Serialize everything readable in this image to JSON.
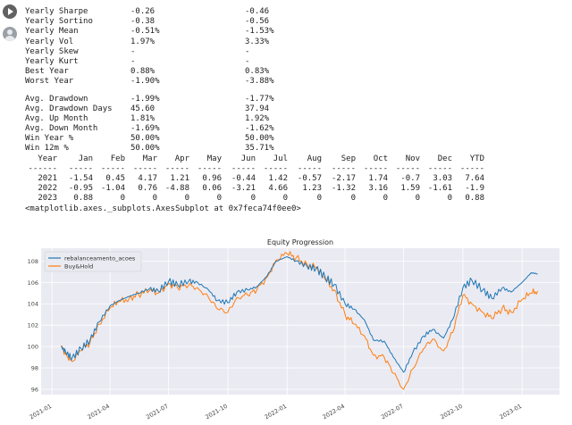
{
  "stats": [
    {
      "label": "Yearly Sharpe",
      "a": "-0.26",
      "b": "-0.46"
    },
    {
      "label": "Yearly Sortino",
      "a": "-0.38",
      "b": "-0.56"
    },
    {
      "label": "Yearly Mean",
      "a": "-0.51%",
      "b": "-1.53%"
    },
    {
      "label": "Yearly Vol",
      "a": "1.97%",
      "b": "3.33%"
    },
    {
      "label": "Yearly Skew",
      "a": "-",
      "b": "-"
    },
    {
      "label": "Yearly Kurt",
      "a": "-",
      "b": "-"
    },
    {
      "label": "Best Year",
      "a": "0.88%",
      "b": "0.83%"
    },
    {
      "label": "Worst Year",
      "a": "-1.90%",
      "b": "-3.88%"
    }
  ],
  "stats2": [
    {
      "label": "Avg. Drawdown",
      "a": "-1.99%",
      "b": "-1.77%"
    },
    {
      "label": "Avg. Drawdown Days",
      "a": "45.60",
      "b": "37.94"
    },
    {
      "label": "Avg. Up Month",
      "a": "1.81%",
      "b": "1.92%"
    },
    {
      "label": "Avg. Down Month",
      "a": "-1.69%",
      "b": "-1.62%"
    },
    {
      "label": "Win Year %",
      "a": "50.00%",
      "b": "50.00%"
    },
    {
      "label": "Win 12m %",
      "a": "50.00%",
      "b": "35.71%"
    }
  ],
  "monthly": {
    "header": [
      "Year",
      "Jan",
      "Feb",
      "Mar",
      "Apr",
      "May",
      "Jun",
      "Jul",
      "Aug",
      "Sep",
      "Oct",
      "Nov",
      "Dec",
      "YTD"
    ],
    "separator": [
      "------",
      "-----",
      "-----",
      "-----",
      "-----",
      "-----",
      "-----",
      "-----",
      "-----",
      "-----",
      "-----",
      "-----",
      "-----",
      "-----"
    ],
    "rows": [
      [
        "2021",
        "-1.54",
        "0.45",
        "4.17",
        "1.21",
        "0.96",
        "-0.44",
        "1.42",
        "-0.57",
        "-2.17",
        "1.74",
        "-0.7",
        "3.03",
        "7.64"
      ],
      [
        "2022",
        "-0.95",
        "-1.04",
        "0.76",
        "-4.88",
        "0.06",
        "-3.21",
        "4.66",
        "1.23",
        "-1.32",
        "3.16",
        "1.59",
        "-1.61",
        "-1.9"
      ],
      [
        "2023",
        "0.88",
        "0",
        "0",
        "0",
        "0",
        "0",
        "0",
        "0",
        "0",
        "0",
        "0",
        "0",
        "0.88"
      ]
    ]
  },
  "repr": "<matplotlib.axes._subplots.AxesSubplot at 0x7feca74f0ee0>",
  "chart_data": {
    "type": "line",
    "title": "Equity Progression",
    "x_ticks": [
      "2021-01",
      "2021-04",
      "2021-07",
      "2021-10",
      "2022-01",
      "2022-04",
      "2022-07",
      "2022-10",
      "2023-01"
    ],
    "y_ticks": [
      "96",
      "98",
      "100",
      "102",
      "104",
      "106",
      "108"
    ],
    "ylim": [
      95.5,
      109.2
    ],
    "legend": "top-left",
    "grid": true,
    "colors": {
      "rebal": "#1f77b4",
      "hold": "#ff7f0e",
      "bg": "#eaeaf2"
    },
    "series": [
      {
        "name": "rebalanceamento_acoes",
        "color": "#1f77b4",
        "points": [
          [
            "2021-01-15",
            100
          ],
          [
            "2021-01-22",
            99.5
          ],
          [
            "2021-02-01",
            98.9
          ],
          [
            "2021-02-15",
            99.8
          ],
          [
            "2021-03-01",
            100.6
          ],
          [
            "2021-03-15",
            102.3
          ],
          [
            "2021-04-01",
            103.8
          ],
          [
            "2021-04-15",
            104.3
          ],
          [
            "2021-05-01",
            104.7
          ],
          [
            "2021-05-15",
            105.0
          ],
          [
            "2021-06-01",
            105.4
          ],
          [
            "2021-06-15",
            105.2
          ],
          [
            "2021-07-01",
            106.1
          ],
          [
            "2021-07-15",
            105.8
          ],
          [
            "2021-08-01",
            106.1
          ],
          [
            "2021-08-15",
            106.0
          ],
          [
            "2021-09-01",
            105.3
          ],
          [
            "2021-09-15",
            104.3
          ],
          [
            "2021-10-01",
            104.1
          ],
          [
            "2021-10-15",
            105.1
          ],
          [
            "2021-11-01",
            105.3
          ],
          [
            "2021-11-15",
            105.6
          ],
          [
            "2021-12-01",
            106.6
          ],
          [
            "2021-12-15",
            108.0
          ],
          [
            "2022-01-01",
            108.4
          ],
          [
            "2022-01-15",
            108.0
          ],
          [
            "2022-02-01",
            107.5
          ],
          [
            "2022-02-15",
            107.3
          ],
          [
            "2022-03-01",
            106.5
          ],
          [
            "2022-03-15",
            105.8
          ],
          [
            "2022-04-01",
            104.0
          ],
          [
            "2022-04-15",
            103.5
          ],
          [
            "2022-05-01",
            102.5
          ],
          [
            "2022-05-15",
            100.6
          ],
          [
            "2022-06-01",
            100.5
          ],
          [
            "2022-06-15",
            99.0
          ],
          [
            "2022-07-01",
            97.6
          ],
          [
            "2022-07-15",
            99.4
          ],
          [
            "2022-08-01",
            101.0
          ],
          [
            "2022-08-15",
            101.6
          ],
          [
            "2022-09-01",
            100.8
          ],
          [
            "2022-09-15",
            102.5
          ],
          [
            "2022-10-01",
            105.5
          ],
          [
            "2022-10-15",
            106.2
          ],
          [
            "2022-11-01",
            105.3
          ],
          [
            "2022-11-15",
            104.5
          ],
          [
            "2022-12-01",
            105.5
          ],
          [
            "2022-12-15",
            105.1
          ],
          [
            "2023-01-01",
            106.0
          ],
          [
            "2023-01-15",
            106.9
          ],
          [
            "2023-01-25",
            106.8
          ]
        ]
      },
      {
        "name": "Buy&Hold",
        "color": "#ff7f0e",
        "points": [
          [
            "2021-01-15",
            100
          ],
          [
            "2021-01-22",
            99.3
          ],
          [
            "2021-02-01",
            98.6
          ],
          [
            "2021-02-15",
            99.6
          ],
          [
            "2021-03-01",
            100.4
          ],
          [
            "2021-03-15",
            102.1
          ],
          [
            "2021-04-01",
            103.6
          ],
          [
            "2021-04-15",
            104.2
          ],
          [
            "2021-05-01",
            104.5
          ],
          [
            "2021-05-15",
            104.9
          ],
          [
            "2021-06-01",
            105.2
          ],
          [
            "2021-06-15",
            105.0
          ],
          [
            "2021-07-01",
            105.9
          ],
          [
            "2021-07-15",
            105.5
          ],
          [
            "2021-08-01",
            105.7
          ],
          [
            "2021-08-15",
            105.5
          ],
          [
            "2021-09-01",
            104.6
          ],
          [
            "2021-09-15",
            103.5
          ],
          [
            "2021-10-01",
            103.2
          ],
          [
            "2021-10-15",
            104.6
          ],
          [
            "2021-11-01",
            104.8
          ],
          [
            "2021-11-15",
            105.3
          ],
          [
            "2021-12-01",
            106.5
          ],
          [
            "2021-12-15",
            108.1
          ],
          [
            "2022-01-01",
            108.7
          ],
          [
            "2022-01-15",
            108.3
          ],
          [
            "2022-02-01",
            107.7
          ],
          [
            "2022-02-15",
            107.4
          ],
          [
            "2022-03-01",
            106.3
          ],
          [
            "2022-03-15",
            105.3
          ],
          [
            "2022-04-01",
            103.0
          ],
          [
            "2022-04-15",
            102.1
          ],
          [
            "2022-05-01",
            101.0
          ],
          [
            "2022-05-15",
            99.2
          ],
          [
            "2022-06-01",
            99.0
          ],
          [
            "2022-06-15",
            97.5
          ],
          [
            "2022-07-01",
            96.0
          ],
          [
            "2022-07-15",
            97.9
          ],
          [
            "2022-08-01",
            99.8
          ],
          [
            "2022-08-15",
            100.7
          ],
          [
            "2022-09-01",
            99.6
          ],
          [
            "2022-09-15",
            101.3
          ],
          [
            "2022-10-01",
            104.8
          ],
          [
            "2022-10-15",
            104.0
          ],
          [
            "2022-11-01",
            103.2
          ],
          [
            "2022-11-15",
            102.6
          ],
          [
            "2022-12-01",
            103.6
          ],
          [
            "2022-12-15",
            103.2
          ],
          [
            "2023-01-01",
            104.4
          ],
          [
            "2023-01-15",
            105.0
          ],
          [
            "2023-01-25",
            105.2
          ]
        ]
      }
    ]
  }
}
